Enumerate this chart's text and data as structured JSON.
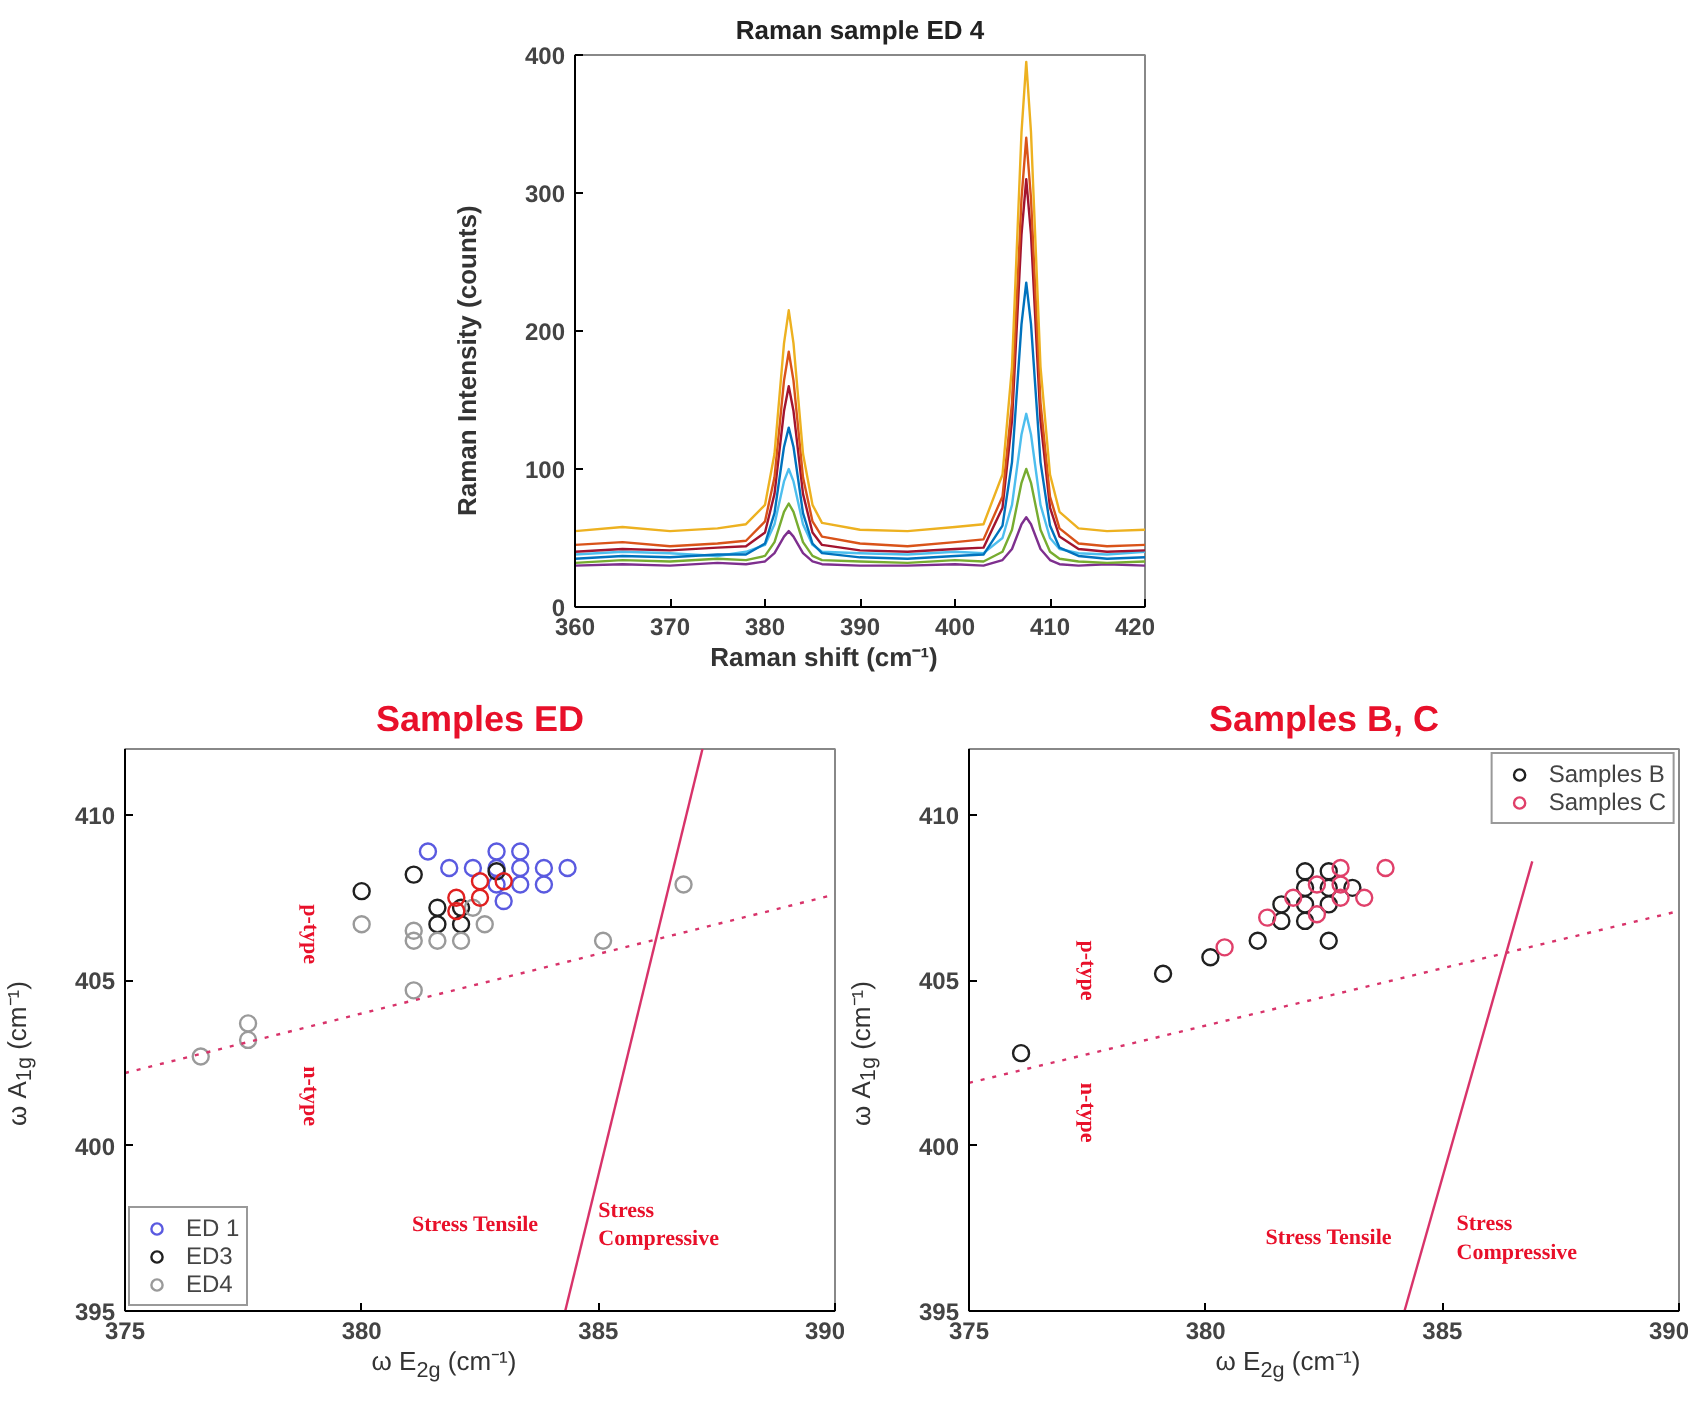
{
  "chart_data": [
    {
      "type": "line",
      "title": "Raman sample ED 4",
      "xlabel": "Raman shift (cm⁻¹)",
      "ylabel": "Raman Intensity (counts)",
      "xlim": [
        360,
        420
      ],
      "ylim": [
        0,
        400
      ],
      "xticks": [
        360,
        370,
        380,
        390,
        400,
        410,
        420
      ],
      "yticks": [
        0,
        100,
        200,
        300,
        400
      ],
      "x": [
        360,
        365,
        370,
        375,
        378,
        380,
        381,
        382,
        382.5,
        383,
        384,
        385,
        386,
        390,
        395,
        400,
        403,
        405,
        406,
        407,
        407.5,
        408,
        409,
        410,
        411,
        413,
        416,
        420
      ],
      "series": [
        {
          "color": "#7e2f8e",
          "values": [
            30,
            31,
            30,
            32,
            31,
            33,
            39,
            51,
            55,
            51,
            39,
            33,
            31,
            30,
            30,
            31,
            30,
            34,
            42,
            60,
            65,
            60,
            42,
            34,
            31,
            30,
            31,
            30
          ]
        },
        {
          "color": "#77ac30",
          "values": [
            32,
            34,
            33,
            35,
            34,
            37,
            47,
            69,
            75,
            69,
            47,
            37,
            34,
            33,
            32,
            34,
            33,
            40,
            56,
            90,
            100,
            90,
            56,
            40,
            35,
            33,
            32,
            33
          ]
        },
        {
          "color": "#4dbeee",
          "values": [
            38,
            40,
            39,
            37,
            40,
            45,
            60,
            91,
            100,
            91,
            60,
            45,
            40,
            39,
            38,
            40,
            39,
            50,
            74,
            125,
            140,
            125,
            74,
            50,
            42,
            39,
            38,
            40
          ]
        },
        {
          "color": "#0072bd",
          "values": [
            35,
            37,
            36,
            38,
            38,
            46,
            68,
            116,
            130,
            116,
            68,
            46,
            39,
            36,
            35,
            37,
            38,
            59,
            105,
            205,
            235,
            205,
            105,
            59,
            43,
            37,
            35,
            36
          ]
        },
        {
          "color": "#a2142f",
          "values": [
            40,
            42,
            41,
            43,
            44,
            54,
            82,
            142,
            160,
            142,
            82,
            54,
            45,
            41,
            40,
            42,
            43,
            72,
            135,
            270,
            310,
            270,
            135,
            72,
            51,
            42,
            40,
            41
          ]
        },
        {
          "color": "#d95319",
          "values": [
            45,
            47,
            44,
            46,
            48,
            62,
            94,
            164,
            185,
            164,
            94,
            62,
            51,
            46,
            44,
            47,
            49,
            80,
            148,
            296,
            340,
            296,
            148,
            80,
            57,
            46,
            44,
            45
          ]
        },
        {
          "color": "#edb120",
          "values": [
            55,
            58,
            55,
            57,
            60,
            74,
            111,
            191,
            215,
            191,
            111,
            74,
            61,
            56,
            55,
            58,
            60,
            96,
            174,
            344,
            395,
            344,
            174,
            96,
            69,
            57,
            55,
            56
          ]
        }
      ]
    },
    {
      "type": "scatter",
      "title": "Samples ED",
      "xlabel": "ω E$_{2g}$ (cm⁻¹)",
      "ylabel": "ω A$_{1g}$ (cm⁻¹)",
      "xlim": [
        375,
        390
      ],
      "ylim": [
        395,
        412
      ],
      "xticks": [
        375,
        380,
        385,
        390
      ],
      "yticks": [
        395,
        400,
        405,
        410
      ],
      "marker": "circle",
      "legend": "bottom left",
      "annotations": [
        "p-type",
        "n-type",
        "Stress Tensile",
        "Stress Compressive"
      ],
      "series": [
        {
          "name": "ED 1",
          "color": "#5a5ae0",
          "x": [
            381.4,
            381.85,
            382.35,
            382.85,
            383.35,
            382.85,
            383.35,
            383.85,
            384.35,
            383.35,
            383.85,
            382.85,
            383.0
          ],
          "values": [
            408.9,
            408.4,
            408.4,
            408.9,
            408.9,
            408.4,
            408.4,
            408.4,
            408.4,
            407.9,
            407.9,
            407.9,
            407.4
          ]
        },
        {
          "name": "ED3",
          "color": "#202020",
          "x": [
            380.0,
            381.1,
            381.6,
            381.6,
            382.1,
            382.1,
            382.85
          ],
          "values": [
            407.7,
            408.2,
            407.2,
            406.7,
            407.2,
            406.7,
            408.3
          ]
        },
        {
          "name": "ED4",
          "color": "#9a9a9a",
          "x": [
            380.0,
            381.1,
            381.1,
            381.6,
            382.1,
            382.6,
            381.1,
            377.6,
            377.6,
            376.6,
            385.1,
            386.8,
            382.35
          ],
          "values": [
            406.7,
            406.5,
            406.2,
            406.2,
            406.2,
            406.7,
            404.7,
            403.7,
            403.2,
            402.7,
            406.2,
            407.9,
            407.2
          ]
        },
        {
          "color": "#e02020",
          "x": [
            382.0,
            382.5,
            382.5,
            383.0,
            382.0
          ],
          "values": [
            407.5,
            407.5,
            408.0,
            408.0,
            407.1
          ]
        },
        {
          "type": "line",
          "marker": "none",
          "color": "#d8336a",
          "line_style": "dotted",
          "x": [
            375,
            390
          ],
          "values": [
            402.2,
            407.6
          ]
        },
        {
          "type": "line",
          "marker": "none",
          "color": "#d8336a",
          "line_style": "solid",
          "x": [
            384.3,
            387.2
          ],
          "values": [
            395,
            412
          ]
        }
      ]
    },
    {
      "type": "scatter",
      "title": "Samples B, C",
      "xlabel": "ω E$_{2g}$ (cm⁻¹)",
      "ylabel": "ω A$_{1g}$ (cm⁻¹)",
      "xlim": [
        375,
        390
      ],
      "ylim": [
        395,
        412
      ],
      "xticks": [
        375,
        380,
        385,
        390
      ],
      "yticks": [
        395,
        400,
        405,
        410
      ],
      "marker": "circle",
      "legend": "top right",
      "annotations": [
        "p-type",
        "n-type",
        "Stress Tensile",
        "Stress Compressive"
      ],
      "series": [
        {
          "name": "Samples B",
          "color": "#202020",
          "x": [
            376.1,
            379.1,
            380.1,
            381.1,
            381.6,
            382.1,
            382.6,
            382.1,
            382.6,
            382.1,
            382.6,
            382.1,
            382.6,
            383.1,
            381.6
          ],
          "values": [
            402.8,
            405.2,
            405.7,
            406.2,
            406.8,
            408.3,
            408.3,
            407.8,
            407.8,
            407.3,
            407.3,
            406.8,
            406.2,
            407.8,
            407.3
          ]
        },
        {
          "name": "Samples C",
          "color": "#e0406a",
          "x": [
            380.4,
            381.3,
            381.85,
            382.35,
            382.85,
            382.85,
            383.35,
            382.35,
            383.8,
            382.85
          ],
          "values": [
            406.0,
            406.9,
            407.5,
            407.9,
            408.4,
            407.5,
            407.5,
            407.0,
            408.4,
            407.9
          ]
        },
        {
          "type": "line",
          "marker": "none",
          "color": "#d8336a",
          "line_style": "dotted",
          "x": [
            375,
            390
          ],
          "values": [
            401.9,
            407.1
          ]
        },
        {
          "type": "line",
          "marker": "none",
          "color": "#d8336a",
          "line_style": "solid",
          "x": [
            384.2,
            386.9
          ],
          "values": [
            395,
            408.6
          ]
        }
      ]
    }
  ]
}
